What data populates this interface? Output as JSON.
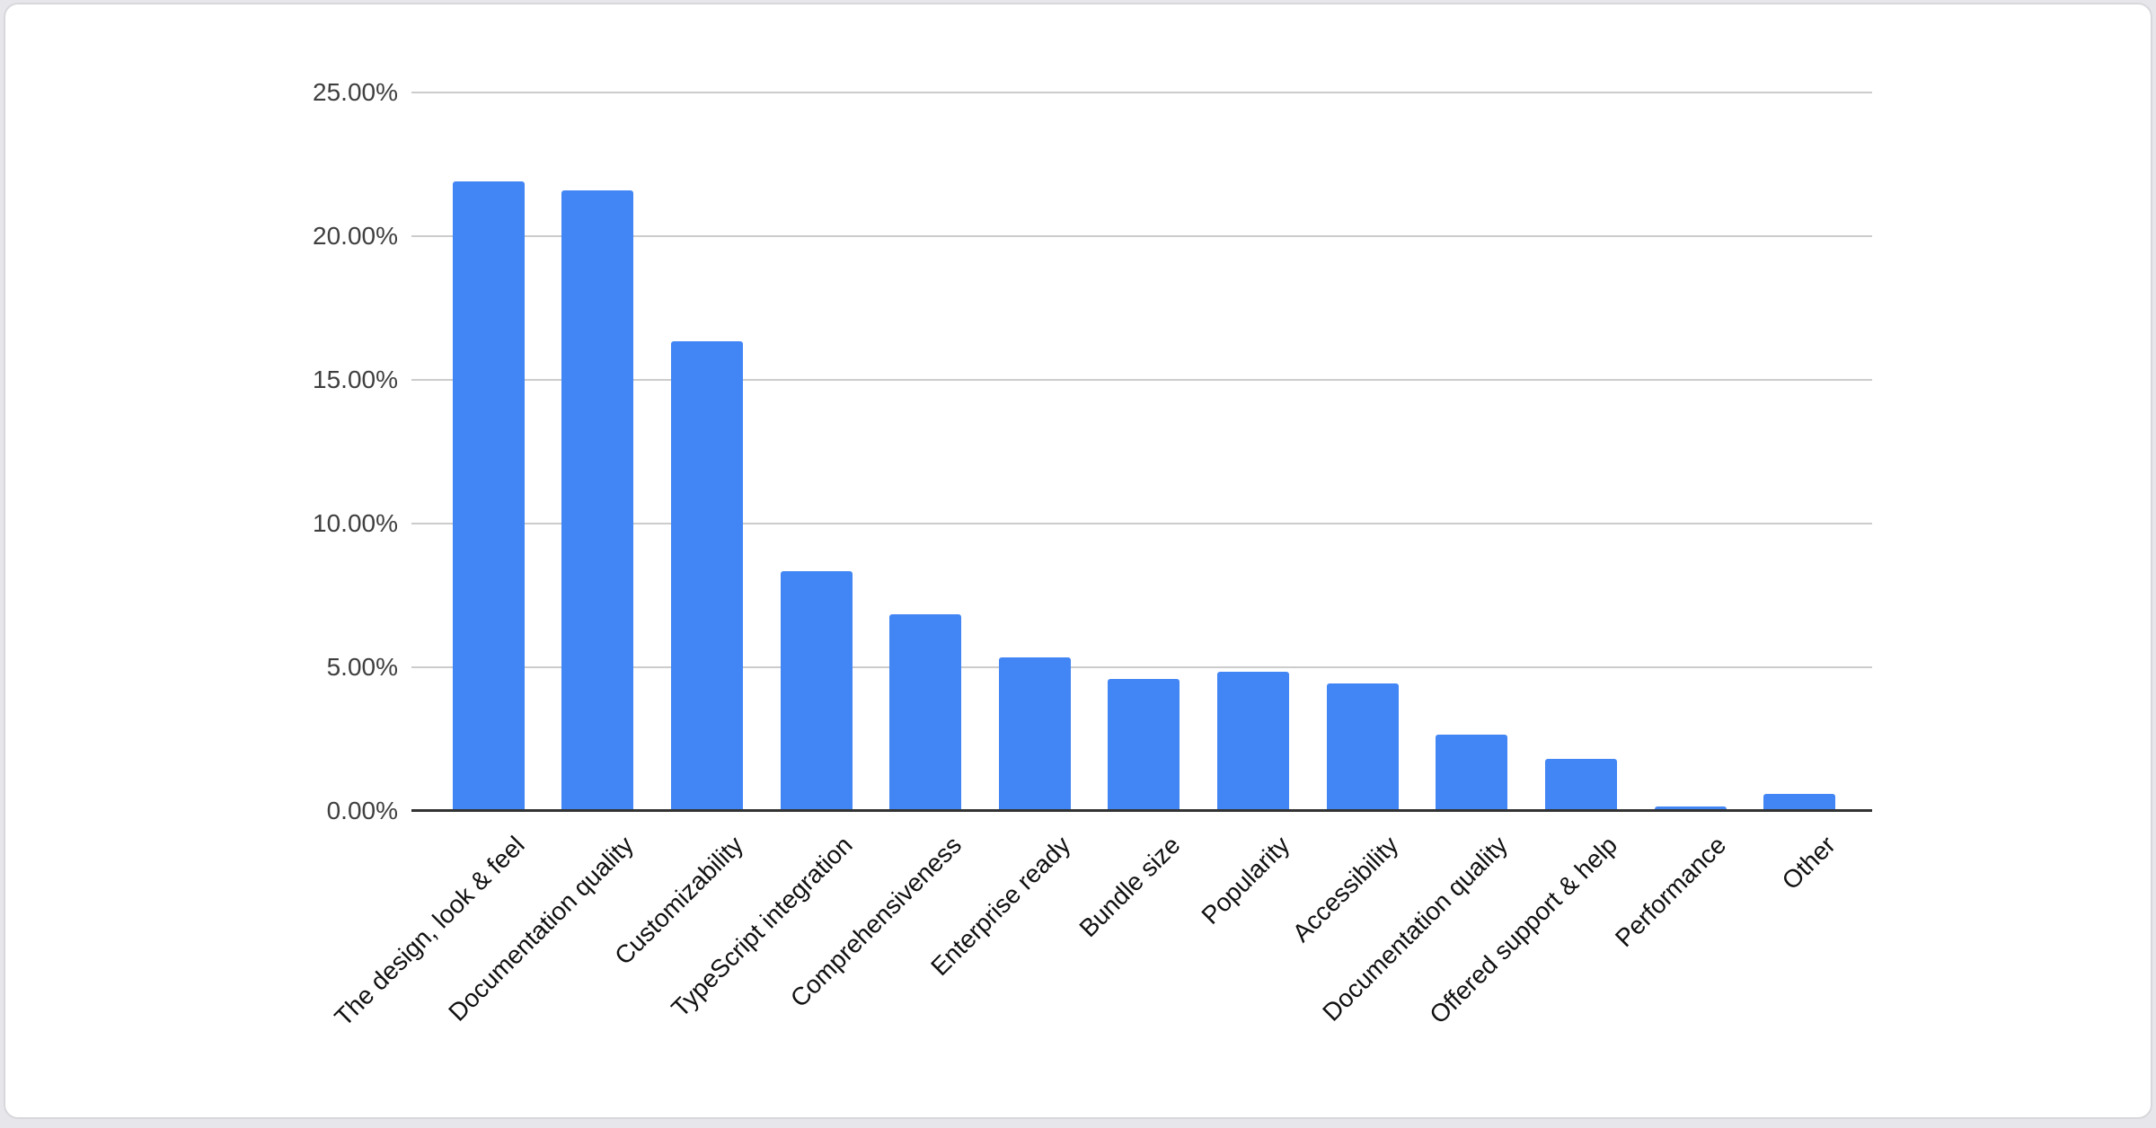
{
  "page": {
    "background_color": "#e7e7eb",
    "card_background": "#ffffff",
    "card_border_color": "#d8d8dc"
  },
  "chart_data": {
    "type": "bar",
    "title": "",
    "xlabel": "",
    "ylabel": "",
    "categories": [
      "The design, look & feel",
      "Documentation quality",
      "Customizability",
      "TypeScript integration",
      "Comprehensiveness",
      "Enterprise ready",
      "Bundle size",
      "Popularity",
      "Accessibility",
      "Documentation quality",
      "Offered support & help",
      "Performance",
      "Other"
    ],
    "values": [
      21.9,
      21.6,
      16.35,
      8.35,
      6.85,
      5.35,
      4.6,
      4.85,
      4.45,
      2.65,
      1.8,
      0.15,
      0.6
    ],
    "unit": "%",
    "ylim": [
      0,
      25
    ],
    "y_ticks": [
      {
        "value": 25,
        "label": "25.00%"
      },
      {
        "value": 20,
        "label": "20.00%"
      },
      {
        "value": 15,
        "label": "15.00%"
      },
      {
        "value": 10,
        "label": "10.00%"
      },
      {
        "value": 5,
        "label": "5.00%"
      },
      {
        "value": 0,
        "label": "0.00%"
      }
    ],
    "grid": true,
    "legend": "none",
    "x_label_rotation_deg": -45,
    "series_color": "#4285f4",
    "gridline_color": "#cccccc",
    "axis_line_color": "#333333",
    "tick_label_color": "#3f3f3f",
    "category_label_color": "#111111"
  }
}
